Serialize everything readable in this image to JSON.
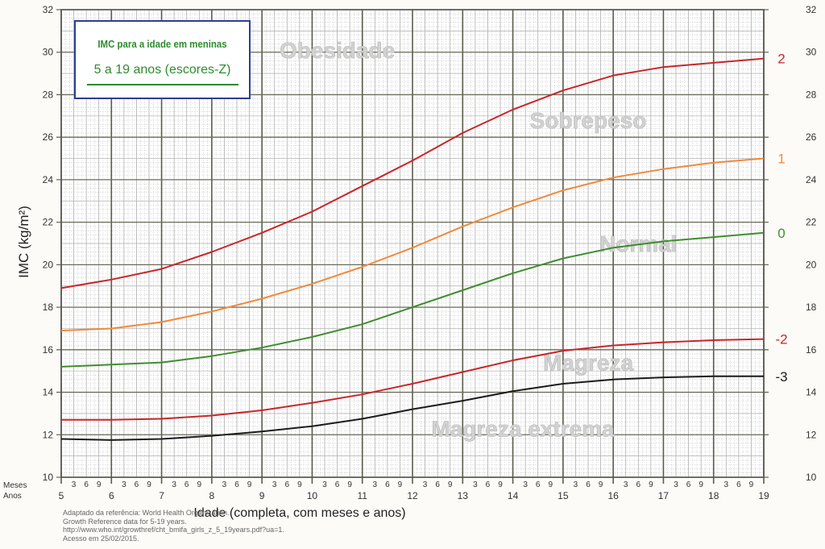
{
  "legend": {
    "title": "IMC para a idade em meninas",
    "subtitle": "5 a 19 anos (escores-Z)"
  },
  "source_lines": [
    "Adaptado da referência:  World Health Organization.",
    "Growth Reference data for 5-19 years.",
    "http://www.who.int/growthref/cht_bmifa_girls_z_5_19years.pdf?ua=1.",
    "Acesso em 25/02/2015."
  ],
  "chart_data": {
    "type": "line",
    "title": "IMC para a idade em meninas",
    "subtitle": "5 a 19 anos (escores-Z)",
    "xlabel": "Idade (completa, com meses e anos)",
    "ylabel": "IMC (kg/m²)",
    "xlim": [
      5,
      19
    ],
    "ylim": [
      10,
      32
    ],
    "grid": true,
    "x_ticks": [
      "5",
      "6",
      "7",
      "8",
      "9",
      "10",
      "11",
      "12",
      "13",
      "14",
      "15",
      "16",
      "17",
      "18",
      "19"
    ],
    "y_ticks": [
      "10",
      "12",
      "14",
      "16",
      "18",
      "20",
      "22",
      "24",
      "26",
      "28",
      "30",
      "32"
    ],
    "month_ticks": [
      "3",
      "6",
      "9"
    ],
    "row_labels": {
      "months": "Meses",
      "years": "Anos"
    },
    "x": [
      5,
      6,
      7,
      8,
      9,
      10,
      11,
      12,
      13,
      14,
      15,
      16,
      17,
      18,
      19
    ],
    "series": [
      {
        "name": "2",
        "color": "#c8262a",
        "values": [
          18.9,
          19.3,
          19.8,
          20.6,
          21.5,
          22.5,
          23.7,
          24.9,
          26.2,
          27.3,
          28.2,
          28.9,
          29.3,
          29.5,
          29.7
        ]
      },
      {
        "name": "1",
        "color": "#f08a3c",
        "values": [
          16.9,
          17.0,
          17.3,
          17.8,
          18.4,
          19.1,
          19.9,
          20.8,
          21.8,
          22.7,
          23.5,
          24.1,
          24.5,
          24.8,
          25.0
        ]
      },
      {
        "name": "0",
        "color": "#3f8e2e",
        "values": [
          15.2,
          15.3,
          15.4,
          15.7,
          16.1,
          16.6,
          17.2,
          18.0,
          18.8,
          19.6,
          20.3,
          20.8,
          21.1,
          21.3,
          21.5
        ]
      },
      {
        "name": "-2",
        "color": "#c8262a",
        "values": [
          12.7,
          12.7,
          12.75,
          12.9,
          13.15,
          13.5,
          13.9,
          14.4,
          14.95,
          15.5,
          15.95,
          16.2,
          16.35,
          16.45,
          16.5
        ]
      },
      {
        "name": "-3",
        "color": "#1c1c1c",
        "values": [
          11.8,
          11.75,
          11.8,
          11.95,
          12.15,
          12.4,
          12.75,
          13.2,
          13.6,
          14.05,
          14.4,
          14.6,
          14.7,
          14.75,
          14.75
        ]
      }
    ],
    "zones": [
      {
        "label": "Obesidade",
        "x": 10.5,
        "y": 30
      },
      {
        "label": "Sobrepeso",
        "x": 15.5,
        "y": 26.7
      },
      {
        "label": "Normal",
        "x": 16.5,
        "y": 20.9
      },
      {
        "label": "Magreza",
        "x": 15.5,
        "y": 15.3
      },
      {
        "label": "Magreza extrema",
        "x": 14.2,
        "y": 12.2
      }
    ]
  }
}
